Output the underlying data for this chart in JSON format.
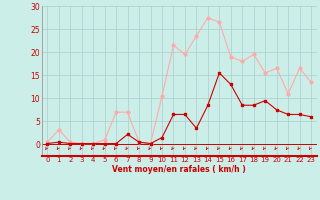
{
  "x": [
    0,
    1,
    2,
    3,
    4,
    5,
    6,
    7,
    8,
    9,
    10,
    11,
    12,
    13,
    14,
    15,
    16,
    17,
    18,
    19,
    20,
    21,
    22,
    23
  ],
  "rafales": [
    0.5,
    3.2,
    0.5,
    0.2,
    0.2,
    1.0,
    7.0,
    7.0,
    0.5,
    0.2,
    10.5,
    21.5,
    19.5,
    23.5,
    27.5,
    26.5,
    19.0,
    18.0,
    19.5,
    15.5,
    16.5,
    11.0,
    16.5,
    13.5
  ],
  "moyen": [
    0.2,
    0.5,
    0.2,
    0.2,
    0.2,
    0.2,
    0.2,
    2.2,
    0.5,
    0.2,
    1.5,
    6.5,
    6.5,
    3.5,
    8.5,
    15.5,
    13.0,
    8.5,
    8.5,
    9.5,
    7.5,
    6.5,
    6.5,
    6.0
  ],
  "color_rafales": "#ffaaaa",
  "color_moyen": "#cc0000",
  "bg_color": "#cceee8",
  "grid_color": "#aacccc",
  "xlabel": "Vent moyen/en rafales ( km/h )",
  "ylim": [
    0,
    30
  ],
  "yticks": [
    0,
    5,
    10,
    15,
    20,
    25,
    30
  ],
  "xticks": [
    0,
    1,
    2,
    3,
    4,
    5,
    6,
    7,
    8,
    9,
    10,
    11,
    12,
    13,
    14,
    15,
    16,
    17,
    18,
    19,
    20,
    21,
    22,
    23
  ]
}
